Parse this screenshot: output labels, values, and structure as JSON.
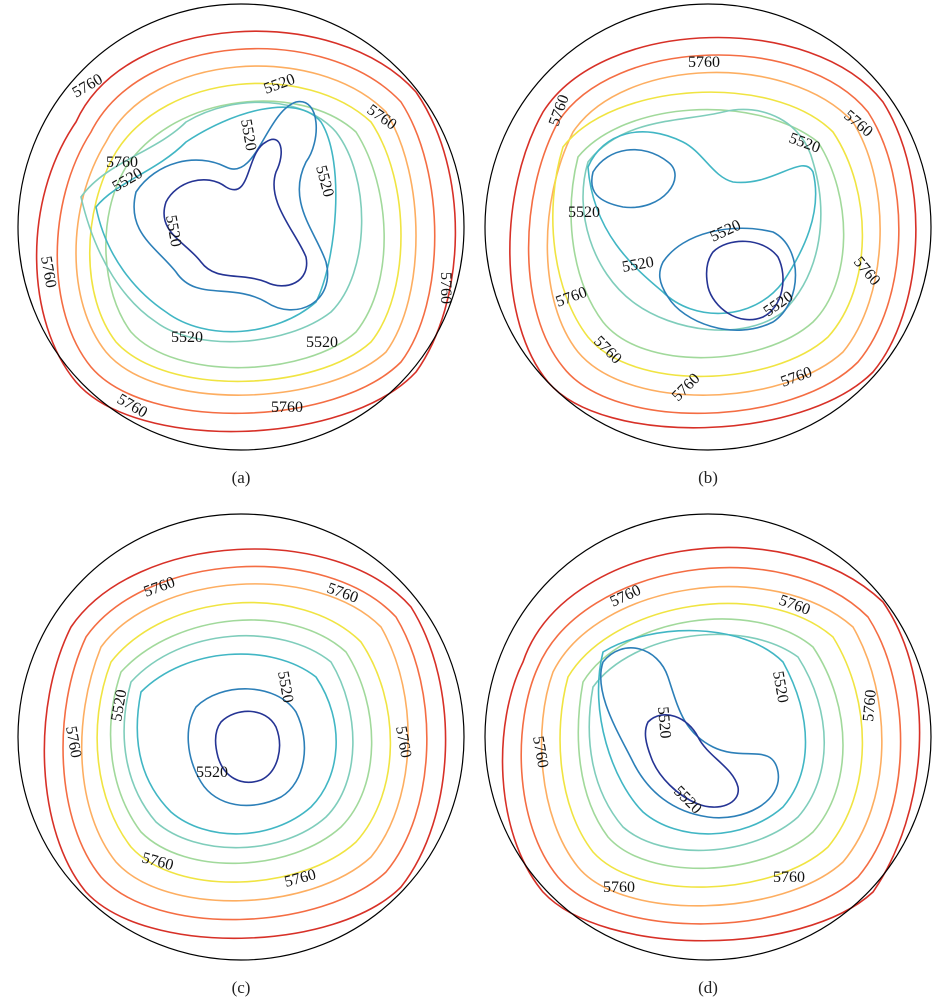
{
  "figure": {
    "panels": [
      {
        "id": "a",
        "caption": "(a)",
        "contour_labels": [
          "5520",
          "5520",
          "5520",
          "5520",
          "5520",
          "5520",
          "5520",
          "5760",
          "5760",
          "5760",
          "5760",
          "5760",
          "5760",
          "5760"
        ]
      },
      {
        "id": "b",
        "caption": "(b)",
        "contour_labels": [
          "5760",
          "5520",
          "5760",
          "5760",
          "5520",
          "5520",
          "5520",
          "5520",
          "5760",
          "5760",
          "5760",
          "5760",
          "5760"
        ]
      },
      {
        "id": "c",
        "caption": "(c)",
        "contour_labels": [
          "5760",
          "5760",
          "5520",
          "5520",
          "5760",
          "5520",
          "5760",
          "5760",
          "5760"
        ]
      },
      {
        "id": "d",
        "caption": "(d)",
        "contour_labels": [
          "5760",
          "5760",
          "5520",
          "5520",
          "5520",
          "5760",
          "5760",
          "5760",
          "5760"
        ]
      }
    ],
    "contour_levels": [
      "5520",
      "5760"
    ],
    "contour_colors": [
      "#253494",
      "#2c7fb8",
      "#41b6c4",
      "#7fcdbb",
      "#a1d99b",
      "#c7e9b4",
      "#f0e442",
      "#fdae61",
      "#f46d43",
      "#d73027"
    ],
    "map_projection": "north polar stereographic",
    "coastline_color": "#000000"
  }
}
